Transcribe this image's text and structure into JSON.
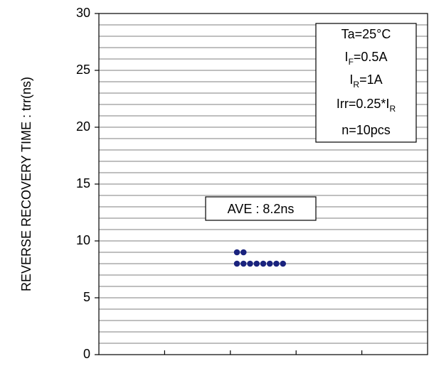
{
  "chart_data": {
    "type": "scatter",
    "title": "",
    "xlabel": "",
    "ylabel": "REVERSE RECOVERY TIME : trr(ns)",
    "ylim": [
      0,
      30
    ],
    "y_major_ticks": [
      0,
      5,
      10,
      15,
      20,
      25,
      30
    ],
    "y_minor_step": 1,
    "grid": true,
    "x_categories": 5,
    "series": [
      {
        "color": "#1a237e",
        "points": [
          {
            "pos": 2.1,
            "value": 9
          },
          {
            "pos": 2.2,
            "value": 9
          },
          {
            "pos": 2.1,
            "value": 8
          },
          {
            "pos": 2.2,
            "value": 8
          },
          {
            "pos": 2.3,
            "value": 8
          },
          {
            "pos": 2.4,
            "value": 8
          },
          {
            "pos": 2.5,
            "value": 8
          },
          {
            "pos": 2.6,
            "value": 8
          },
          {
            "pos": 2.7,
            "value": 8
          },
          {
            "pos": 2.8,
            "value": 8
          }
        ]
      }
    ],
    "annotations": {
      "average": "AVE : 8.2ns",
      "conditions": {
        "ta": "Ta=25°C",
        "if_main": "I",
        "if_sub": "F",
        "if_value": "=0.5A",
        "ir_main": "I",
        "ir_sub": "R",
        "ir_value": "=1A",
        "irr_prefix": "Irr=0.25*I",
        "irr_sub": "R",
        "n": "n=10pcs"
      }
    }
  }
}
